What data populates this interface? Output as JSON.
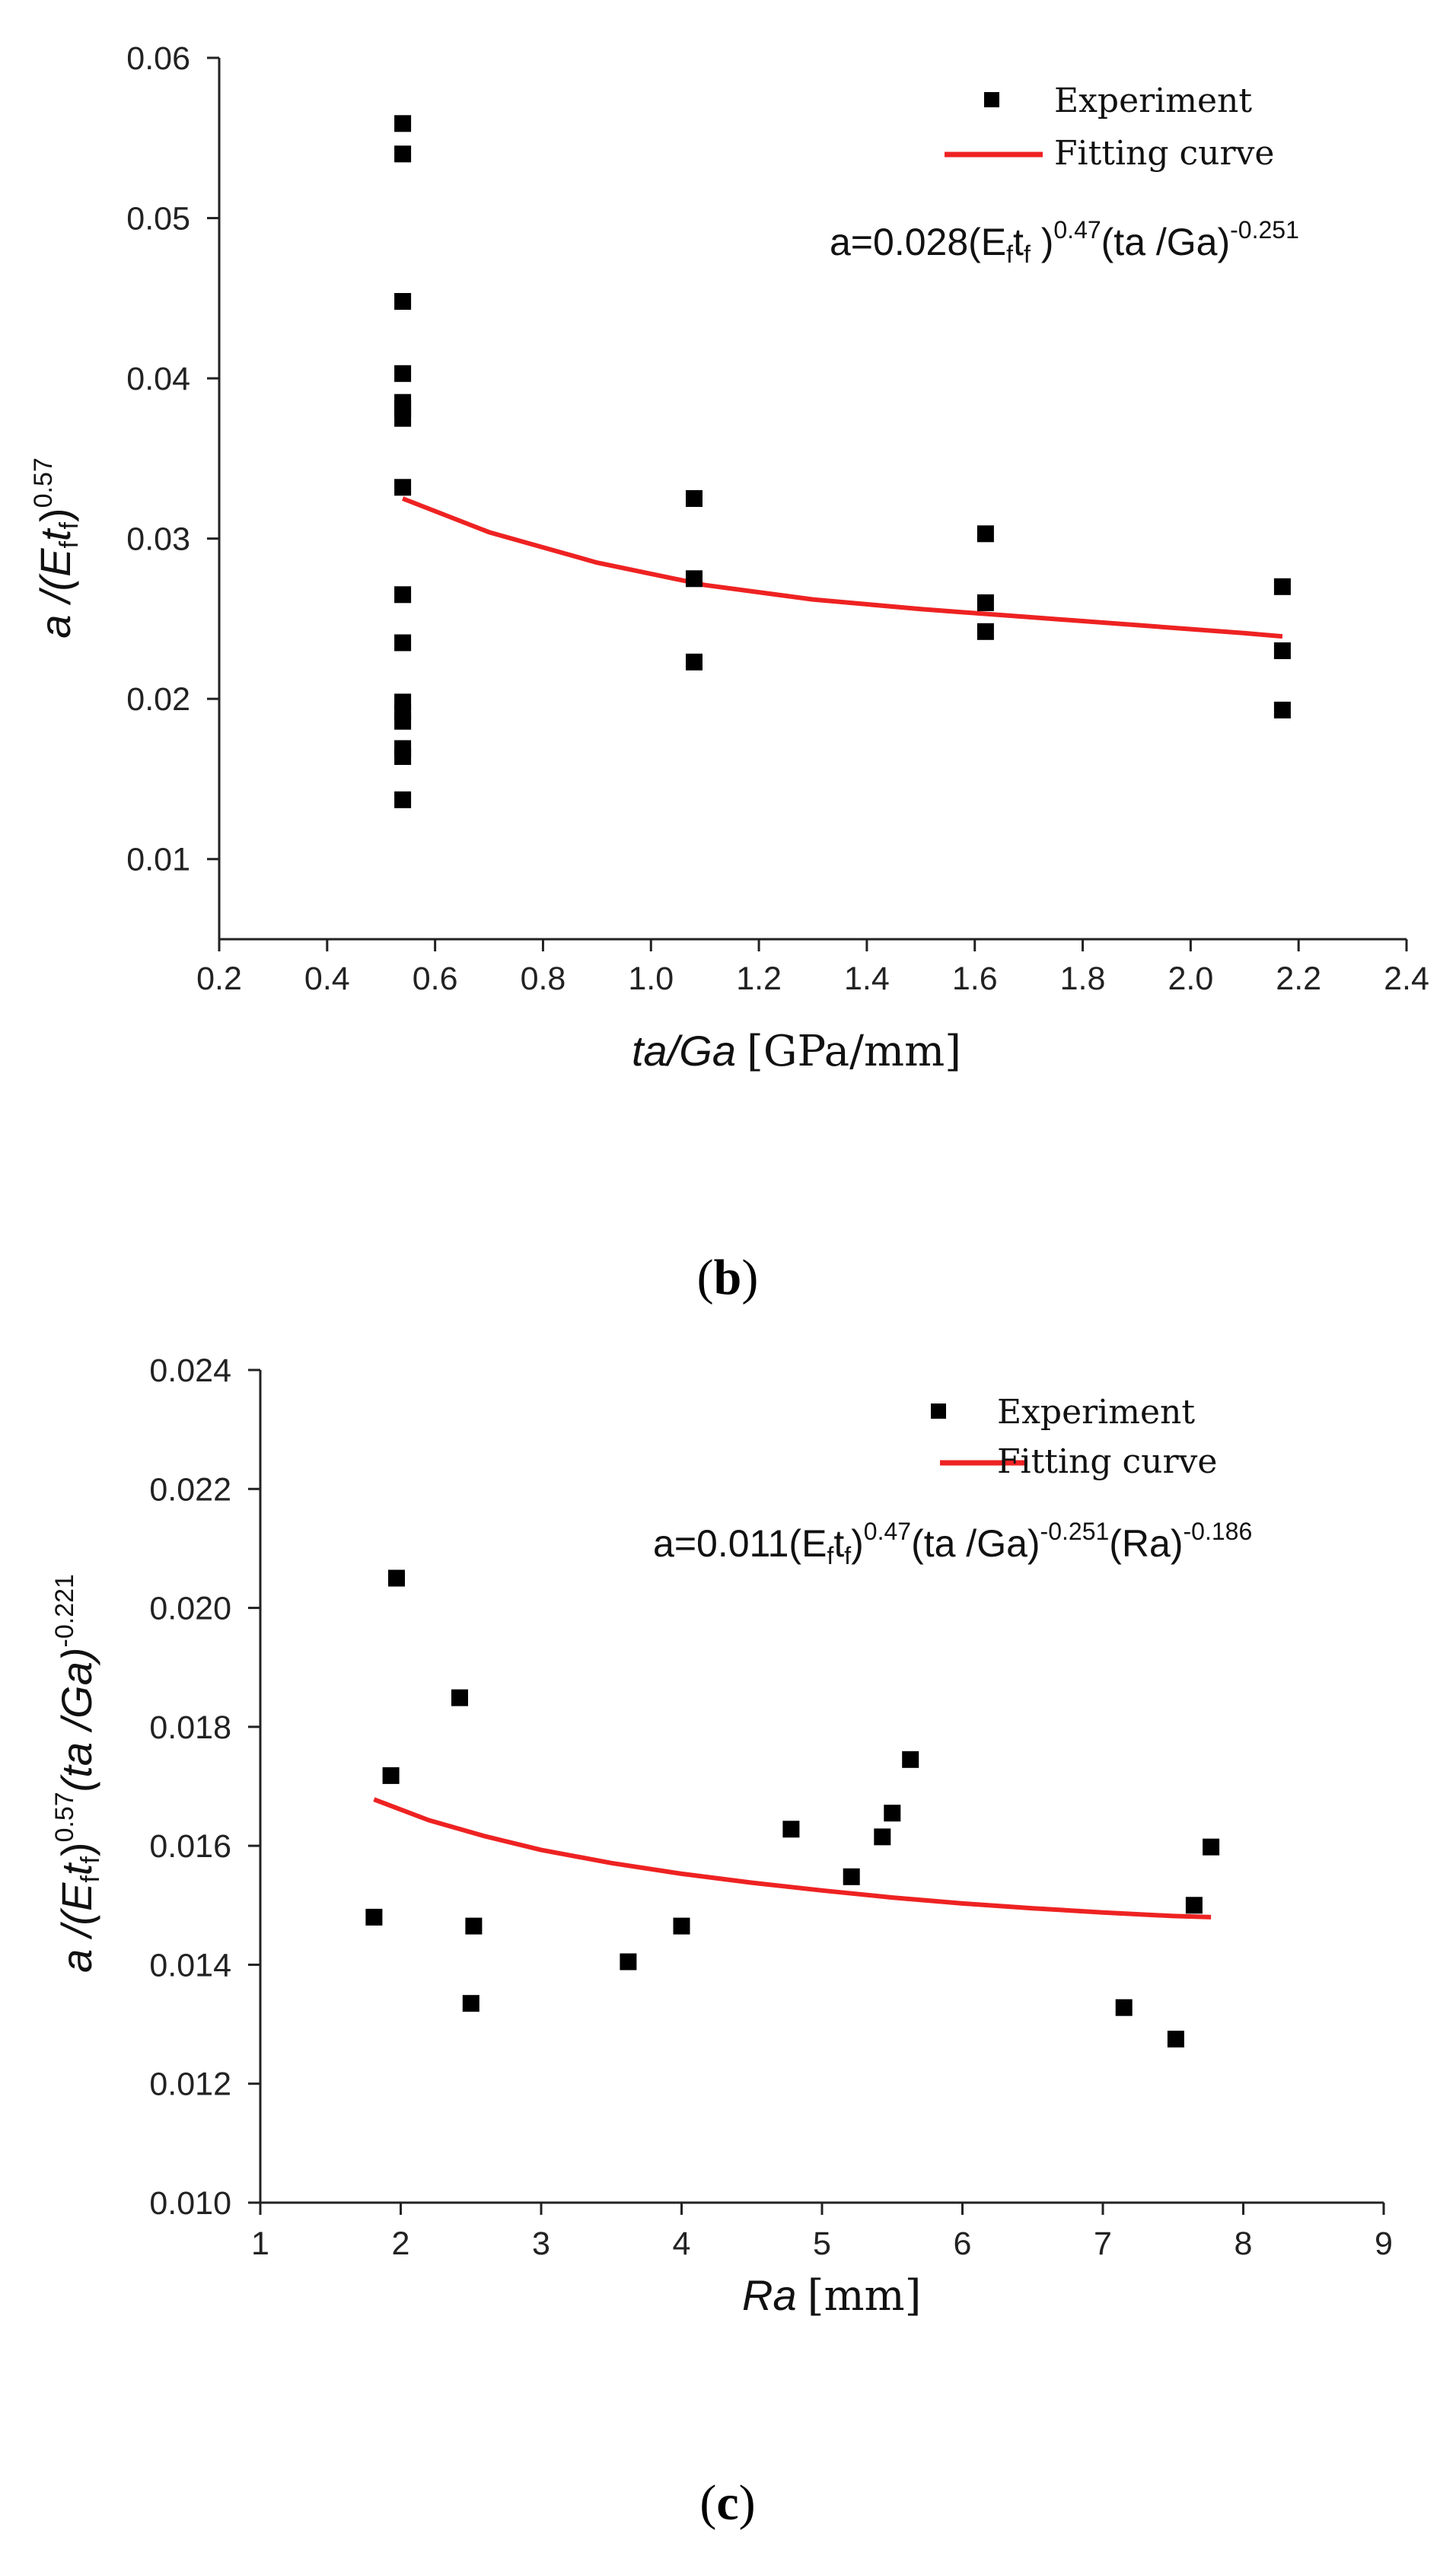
{
  "colors": {
    "marker": "#000000",
    "curve": "#ee2222",
    "axis": "#222222"
  },
  "chart_data": [
    {
      "type": "scatter",
      "panel_label": {
        "open": "(",
        "letter": "b",
        "close": ")"
      },
      "xlabel_main": "ta/Ga",
      "xlabel_unit": "[GPa/mm]",
      "ylabel_lead": "a /(E",
      "ylabel_sub1": "f",
      "ylabel_mid": "t",
      "ylabel_sub2": "f",
      "ylabel_close": ")",
      "ylabel_exp": "0.57",
      "xlim": [
        0.2,
        2.4
      ],
      "ylim": [
        0.005,
        0.06
      ],
      "xticks": [
        "0.2",
        "0.4",
        "0.6",
        "0.8",
        "1.0",
        "1.2",
        "1.4",
        "1.6",
        "1.8",
        "2.0",
        "2.2",
        "2.4"
      ],
      "yticks": [
        "0.01",
        "0.02",
        "0.03",
        "0.04",
        "0.05",
        "0.06"
      ],
      "legend": {
        "position": "top-right",
        "experiment": "Experiment",
        "fit": "Fitting curve"
      },
      "equation": {
        "p1": "a=0.028(E",
        "s1": "f",
        "p2": "t",
        "s2": "f",
        "p3": " )",
        "e1": "0.47",
        "p4": "(ta /Ga)",
        "e2": "-0.251"
      },
      "series": [
        {
          "name": "Experiment",
          "points": [
            [
              0.54,
              0.0559
            ],
            [
              0.54,
              0.054
            ],
            [
              0.54,
              0.0448
            ],
            [
              0.54,
              0.0403
            ],
            [
              0.54,
              0.0385
            ],
            [
              0.54,
              0.0381
            ],
            [
              0.54,
              0.0375
            ],
            [
              0.54,
              0.0332
            ],
            [
              0.54,
              0.0265
            ],
            [
              0.54,
              0.0235
            ],
            [
              0.54,
              0.0198
            ],
            [
              0.54,
              0.0192
            ],
            [
              0.54,
              0.0186
            ],
            [
              0.54,
              0.0169
            ],
            [
              0.54,
              0.0164
            ],
            [
              0.54,
              0.0137
            ],
            [
              1.08,
              0.0325
            ],
            [
              1.08,
              0.0275
            ],
            [
              1.08,
              0.0223
            ],
            [
              1.62,
              0.0303
            ],
            [
              1.62,
              0.026
            ],
            [
              1.62,
              0.0242
            ],
            [
              2.17,
              0.027
            ],
            [
              2.17,
              0.023
            ],
            [
              2.17,
              0.0193
            ]
          ]
        },
        {
          "name": "Fitting curve",
          "type": "line",
          "x": [
            0.54,
            0.7,
            0.9,
            1.1,
            1.3,
            1.5,
            1.7,
            1.9,
            2.1,
            2.17
          ],
          "y": [
            0.0325,
            0.0304,
            0.0285,
            0.0271,
            0.0262,
            0.0256,
            0.0251,
            0.0246,
            0.0241,
            0.0239
          ]
        }
      ]
    },
    {
      "type": "scatter",
      "panel_label": {
        "open": "(",
        "letter": "c",
        "close": ")"
      },
      "xlabel_main": "Ra",
      "xlabel_unit": "[mm]",
      "ylabel_lead": "a /(E",
      "ylabel_sub1": "f",
      "ylabel_mid": "t",
      "ylabel_sub2": "f",
      "ylabel_close": ")",
      "ylabel_exp": "0.57",
      "ylabel_tail": "(ta /Ga)",
      "ylabel_exp2": "-0.221",
      "xlim": [
        1,
        9
      ],
      "ylim": [
        0.01,
        0.024
      ],
      "xticks": [
        "1",
        "2",
        "3",
        "4",
        "5",
        "6",
        "7",
        "8",
        "9"
      ],
      "yticks": [
        "0.010",
        "0.012",
        "0.014",
        "0.016",
        "0.018",
        "0.020",
        "0.022",
        "0.024"
      ],
      "legend": {
        "position": "top-right",
        "experiment": "Experiment",
        "fit": "Fitting curve"
      },
      "equation": {
        "p1": "a",
        "p1b": "=0.011(E",
        "s1": "f",
        "p2": "t",
        "s2": "f",
        "p3": ")",
        "e1": "0.47",
        "p4": "(ta /Ga)",
        "e2": "-0.251",
        "p5": "(Ra)",
        "e3": "-0.186"
      },
      "series": [
        {
          "name": "Experiment",
          "points": [
            [
              1.81,
              0.0148
            ],
            [
              1.93,
              0.01718
            ],
            [
              1.97,
              0.0205
            ],
            [
              2.42,
              0.01849
            ],
            [
              2.5,
              0.01335
            ],
            [
              2.52,
              0.01465
            ],
            [
              3.62,
              0.01405
            ],
            [
              4.0,
              0.01465
            ],
            [
              4.78,
              0.01628
            ],
            [
              5.21,
              0.01548
            ],
            [
              5.43,
              0.01615
            ],
            [
              5.5,
              0.01655
            ],
            [
              5.63,
              0.01745
            ],
            [
              7.15,
              0.01328
            ],
            [
              7.52,
              0.01275
            ],
            [
              7.65,
              0.015
            ],
            [
              7.77,
              0.01598
            ]
          ]
        },
        {
          "name": "Fitting curve",
          "type": "line",
          "x": [
            1.81,
            2.2,
            2.6,
            3.0,
            3.5,
            4.0,
            4.5,
            5.0,
            5.5,
            6.0,
            6.5,
            7.0,
            7.5,
            7.77
          ],
          "y": [
            0.01678,
            0.01643,
            0.01616,
            0.01593,
            0.01571,
            0.01553,
            0.01538,
            0.01525,
            0.01513,
            0.01503,
            0.01495,
            0.01488,
            0.01482,
            0.0148
          ]
        }
      ]
    }
  ]
}
